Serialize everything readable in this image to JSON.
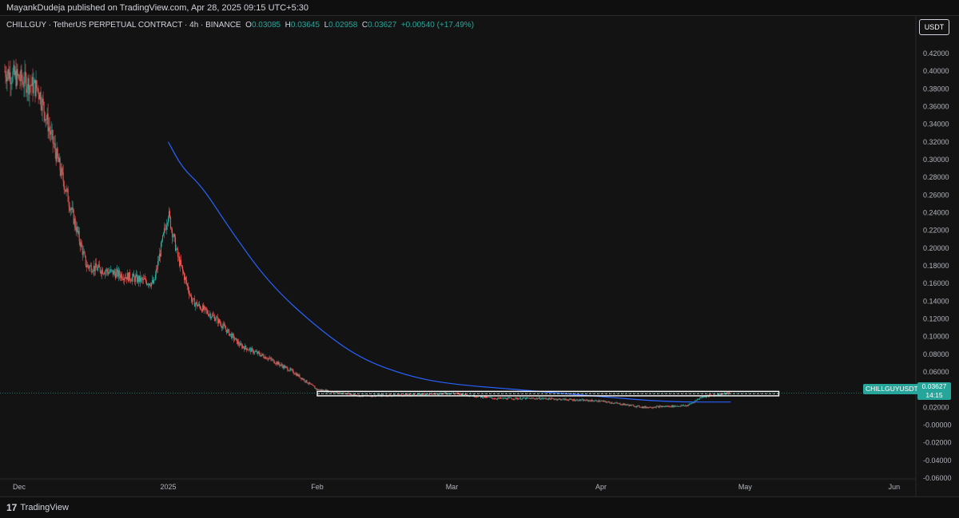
{
  "header": {
    "published": "MayankDudeja published on TradingView.com, Apr 28, 2025 09:15 UTC+5:30"
  },
  "legend": {
    "symbol": "CHILLGUY · TetherUS PERPETUAL CONTRACT · 4h · BINANCE",
    "o_label": "O",
    "o_value": "0.03085",
    "h_label": "H",
    "h_value": "0.03645",
    "l_label": "L",
    "l_value": "0.02958",
    "c_label": "C",
    "c_value": "0.03627",
    "change": "+0.00540 (+17.49%)"
  },
  "currency_button": "USDT",
  "price_tag": {
    "symbol": "CHILLGUYUSDT.P",
    "price": "0.03627",
    "countdown": "14:15"
  },
  "footer": {
    "logo_text": "TradingView"
  },
  "colors": {
    "up": "#26a69a",
    "down": "#ef5350",
    "ma": "#2962ff",
    "background": "#131313",
    "text": "#d1d4dc"
  },
  "chart_data": {
    "type": "candlestick",
    "timeframe": "4h",
    "x_ticks": [
      "Dec",
      "2025",
      "Feb",
      "Mar",
      "Apr",
      "May",
      "Jun"
    ],
    "y_ticks": [
      "0.42000",
      "0.40000",
      "0.38000",
      "0.36000",
      "0.34000",
      "0.32000",
      "0.30000",
      "0.28000",
      "0.26000",
      "0.24000",
      "0.22000",
      "0.20000",
      "0.18000",
      "0.16000",
      "0.14000",
      "0.12000",
      "0.10000",
      "0.08000",
      "0.06000",
      "0.04000",
      "0.02000",
      "-0.00000",
      "-0.02000",
      "-0.04000",
      "-0.06000"
    ],
    "ylim": [
      -0.065,
      0.44
    ],
    "price_trend": [
      {
        "date": "Nov 28",
        "price": 0.4
      },
      {
        "date": "Dec 5",
        "price": 0.38
      },
      {
        "date": "Dec 9",
        "price": 0.3
      },
      {
        "date": "Dec 15",
        "price": 0.18
      },
      {
        "date": "Dec 22",
        "price": 0.17
      },
      {
        "date": "Dec 29",
        "price": 0.16
      },
      {
        "date": "Jan 1",
        "price": 0.24
      },
      {
        "date": "Jan 3",
        "price": 0.19
      },
      {
        "date": "Jan 6",
        "price": 0.14
      },
      {
        "date": "Jan 11",
        "price": 0.12
      },
      {
        "date": "Jan 16",
        "price": 0.09
      },
      {
        "date": "Jan 22",
        "price": 0.075
      },
      {
        "date": "Jan 27",
        "price": 0.06
      },
      {
        "date": "Feb 1",
        "price": 0.04
      },
      {
        "date": "Feb 10",
        "price": 0.033
      },
      {
        "date": "Feb 20",
        "price": 0.034
      },
      {
        "date": "Mar 1",
        "price": 0.036
      },
      {
        "date": "Mar 10",
        "price": 0.03
      },
      {
        "date": "Mar 20",
        "price": 0.03
      },
      {
        "date": "Apr 1",
        "price": 0.027
      },
      {
        "date": "Apr 10",
        "price": 0.02
      },
      {
        "date": "Apr 19",
        "price": 0.022
      },
      {
        "date": "Apr 22",
        "price": 0.032
      },
      {
        "date": "Apr 28",
        "price": 0.03627
      }
    ],
    "moving_average": [
      {
        "date": "Jan 1",
        "value": 0.32
      },
      {
        "date": "Jan 4",
        "value": 0.29
      },
      {
        "date": "Jan 8",
        "value": 0.27
      },
      {
        "date": "Jan 14",
        "value": 0.22
      },
      {
        "date": "Jan 22",
        "value": 0.16
      },
      {
        "date": "Feb 1",
        "value": 0.11
      },
      {
        "date": "Feb 10",
        "value": 0.075
      },
      {
        "date": "Feb 20",
        "value": 0.055
      },
      {
        "date": "Mar 1",
        "value": 0.046
      },
      {
        "date": "Mar 15",
        "value": 0.04
      },
      {
        "date": "Apr 1",
        "value": 0.032
      },
      {
        "date": "Apr 15",
        "value": 0.026
      },
      {
        "date": "Apr 28",
        "value": 0.026
      }
    ],
    "zone": {
      "price_low": 0.033,
      "price_high": 0.038,
      "start": "Feb 1",
      "end": "May 8"
    },
    "last_price": 0.03627
  }
}
